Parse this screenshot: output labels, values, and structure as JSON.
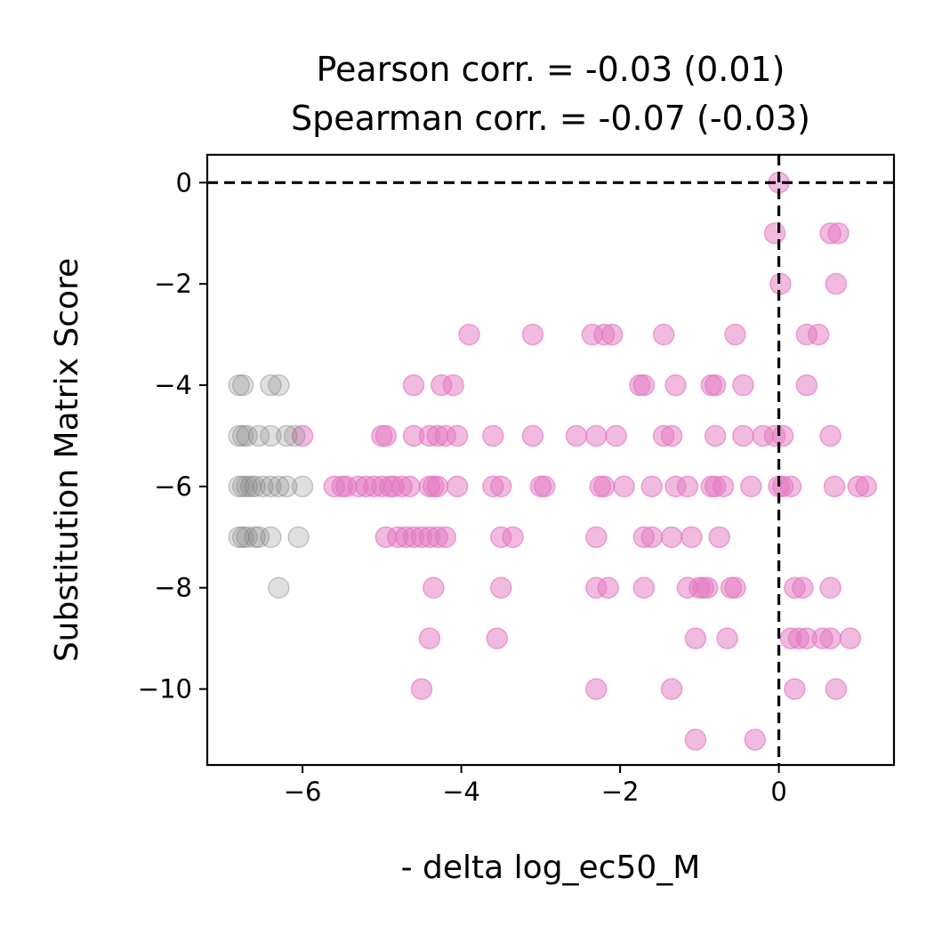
{
  "chart_data": {
    "type": "scatter",
    "title_lines": [
      "Pearson corr. = -0.03 (0.01)",
      "Spearman corr. = -0.07 (-0.03)"
    ],
    "xlabel": "- delta log_ec50_M",
    "ylabel": "Substitution Matrix Score",
    "xlim": [
      -7.2,
      1.45
    ],
    "ylim": [
      -11.5,
      0.55
    ],
    "x_ticks": [
      -6,
      -4,
      -2,
      0
    ],
    "x_tick_labels": [
      "−6",
      "−4",
      "−2",
      "0"
    ],
    "y_ticks": [
      0,
      -2,
      -4,
      -6,
      -8,
      -10
    ],
    "y_tick_labels": [
      "0",
      "−2",
      "−4",
      "−6",
      "−8",
      "−10"
    ],
    "grid": false,
    "reference_lines": [
      {
        "orientation": "horizontal",
        "value": 0,
        "style": "dashed",
        "color": "#000000"
      },
      {
        "orientation": "vertical",
        "value": 0,
        "style": "dashed",
        "color": "#000000"
      }
    ],
    "series": [
      {
        "color": "#e377c2",
        "opacity": 0.5,
        "points": [
          [
            0.0,
            0
          ],
          [
            -0.05,
            -1
          ],
          [
            0.65,
            -1
          ],
          [
            0.75,
            -1
          ],
          [
            0.02,
            -2
          ],
          [
            0.72,
            -2
          ],
          [
            -3.9,
            -3
          ],
          [
            -3.1,
            -3
          ],
          [
            -2.35,
            -3
          ],
          [
            -2.2,
            -3
          ],
          [
            -2.1,
            -3
          ],
          [
            -1.45,
            -3
          ],
          [
            -0.55,
            -3
          ],
          [
            0.35,
            -3
          ],
          [
            0.5,
            -3
          ],
          [
            -4.6,
            -4
          ],
          [
            -4.25,
            -4
          ],
          [
            -4.1,
            -4
          ],
          [
            -1.75,
            -4
          ],
          [
            -1.7,
            -4
          ],
          [
            -1.3,
            -4
          ],
          [
            -0.85,
            -4
          ],
          [
            -0.8,
            -4
          ],
          [
            -0.45,
            -4
          ],
          [
            0.35,
            -4
          ],
          [
            -6.0,
            -5
          ],
          [
            -5.0,
            -5
          ],
          [
            -4.95,
            -5
          ],
          [
            -4.6,
            -5
          ],
          [
            -4.4,
            -5
          ],
          [
            -4.3,
            -5
          ],
          [
            -4.2,
            -5
          ],
          [
            -4.05,
            -5
          ],
          [
            -3.6,
            -5
          ],
          [
            -3.1,
            -5
          ],
          [
            -2.55,
            -5
          ],
          [
            -2.3,
            -5
          ],
          [
            -2.05,
            -5
          ],
          [
            -1.45,
            -5
          ],
          [
            -1.35,
            -5
          ],
          [
            -0.8,
            -5
          ],
          [
            -0.45,
            -5
          ],
          [
            -0.2,
            -5
          ],
          [
            -0.05,
            -5
          ],
          [
            0.05,
            -5
          ],
          [
            0.65,
            -5
          ],
          [
            -5.6,
            -6
          ],
          [
            -5.5,
            -6
          ],
          [
            -5.45,
            -6
          ],
          [
            -5.3,
            -6
          ],
          [
            -5.2,
            -6
          ],
          [
            -5.1,
            -6
          ],
          [
            -5.0,
            -6
          ],
          [
            -4.9,
            -6
          ],
          [
            -4.85,
            -6
          ],
          [
            -4.75,
            -6
          ],
          [
            -4.65,
            -6
          ],
          [
            -4.4,
            -6
          ],
          [
            -4.35,
            -6
          ],
          [
            -4.3,
            -6
          ],
          [
            -4.05,
            -6
          ],
          [
            -3.6,
            -6
          ],
          [
            -3.5,
            -6
          ],
          [
            -3.0,
            -6
          ],
          [
            -2.95,
            -6
          ],
          [
            -2.25,
            -6
          ],
          [
            -2.2,
            -6
          ],
          [
            -1.95,
            -6
          ],
          [
            -1.6,
            -6
          ],
          [
            -1.3,
            -6
          ],
          [
            -1.15,
            -6
          ],
          [
            -0.85,
            -6
          ],
          [
            -0.8,
            -6
          ],
          [
            -0.7,
            -6
          ],
          [
            -0.35,
            -6
          ],
          [
            0.0,
            -6
          ],
          [
            0.05,
            -6
          ],
          [
            0.15,
            -6
          ],
          [
            0.7,
            -6
          ],
          [
            1.0,
            -6
          ],
          [
            1.1,
            -6
          ],
          [
            -4.95,
            -7
          ],
          [
            -4.8,
            -7
          ],
          [
            -4.7,
            -7
          ],
          [
            -4.6,
            -7
          ],
          [
            -4.5,
            -7
          ],
          [
            -4.4,
            -7
          ],
          [
            -4.3,
            -7
          ],
          [
            -4.2,
            -7
          ],
          [
            -3.5,
            -7
          ],
          [
            -3.35,
            -7
          ],
          [
            -2.3,
            -7
          ],
          [
            -1.7,
            -7
          ],
          [
            -1.6,
            -7
          ],
          [
            -1.35,
            -7
          ],
          [
            -1.1,
            -7
          ],
          [
            -0.75,
            -7
          ],
          [
            -4.35,
            -8
          ],
          [
            -3.5,
            -8
          ],
          [
            -2.3,
            -8
          ],
          [
            -2.15,
            -8
          ],
          [
            -1.7,
            -8
          ],
          [
            -1.15,
            -8
          ],
          [
            -1.0,
            -8
          ],
          [
            -0.95,
            -8
          ],
          [
            -0.9,
            -8
          ],
          [
            -0.6,
            -8
          ],
          [
            -0.55,
            -8
          ],
          [
            0.2,
            -8
          ],
          [
            0.3,
            -8
          ],
          [
            0.65,
            -8
          ],
          [
            -4.4,
            -9
          ],
          [
            -3.55,
            -9
          ],
          [
            -1.05,
            -9
          ],
          [
            -0.65,
            -9
          ],
          [
            0.15,
            -9
          ],
          [
            0.25,
            -9
          ],
          [
            0.35,
            -9
          ],
          [
            0.55,
            -9
          ],
          [
            0.65,
            -9
          ],
          [
            0.9,
            -9
          ],
          [
            -4.5,
            -10
          ],
          [
            -2.3,
            -10
          ],
          [
            -1.35,
            -10
          ],
          [
            0.2,
            -10
          ],
          [
            0.72,
            -10
          ],
          [
            -1.05,
            -11
          ],
          [
            -0.3,
            -11
          ]
        ]
      },
      {
        "color": "#7f7f7f",
        "opacity": 0.25,
        "points": [
          [
            -6.8,
            -4
          ],
          [
            -6.75,
            -4
          ],
          [
            -6.4,
            -4
          ],
          [
            -6.3,
            -4
          ],
          [
            -6.8,
            -5
          ],
          [
            -6.75,
            -5
          ],
          [
            -6.7,
            -5
          ],
          [
            -6.55,
            -5
          ],
          [
            -6.4,
            -5
          ],
          [
            -6.2,
            -5
          ],
          [
            -6.1,
            -5
          ],
          [
            -6.8,
            -6
          ],
          [
            -6.75,
            -6
          ],
          [
            -6.7,
            -6
          ],
          [
            -6.65,
            -6
          ],
          [
            -6.6,
            -6
          ],
          [
            -6.5,
            -6
          ],
          [
            -6.4,
            -6
          ],
          [
            -6.3,
            -6
          ],
          [
            -6.2,
            -6
          ],
          [
            -6.0,
            -6
          ],
          [
            -6.8,
            -7
          ],
          [
            -6.75,
            -7
          ],
          [
            -6.7,
            -7
          ],
          [
            -6.6,
            -7
          ],
          [
            -6.55,
            -7
          ],
          [
            -6.4,
            -7
          ],
          [
            -6.05,
            -7
          ],
          [
            -6.3,
            -8
          ]
        ]
      }
    ]
  }
}
